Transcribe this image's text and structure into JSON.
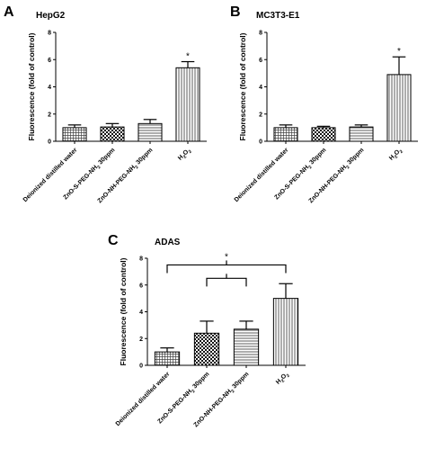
{
  "chart_data": [
    {
      "panel_label": "A",
      "type": "bar",
      "title": "HepG2",
      "ylabel": "Fluorescence (fold of control)",
      "ylim": [
        0,
        8
      ],
      "yticks": [
        0,
        2,
        4,
        6,
        8
      ],
      "categories": [
        "Deionized distilled water",
        "ZnO-S-PEG-NH2 30ppm",
        "ZnO-NH-PEG-NH2 30ppm",
        "H2O2"
      ],
      "values": [
        1.0,
        1.05,
        1.3,
        5.4
      ],
      "errors": [
        0.2,
        0.25,
        0.3,
        0.45
      ],
      "patterns": [
        "grid",
        "checker",
        "hlines",
        "vlines"
      ],
      "annotations": [
        {
          "category_index": 3,
          "text": "*"
        }
      ]
    },
    {
      "panel_label": "B",
      "type": "bar",
      "title": "MC3T3-E1",
      "ylabel": "Fluorescence (fold of control)",
      "ylim": [
        0,
        8
      ],
      "yticks": [
        0,
        2,
        4,
        6,
        8
      ],
      "categories": [
        "Deionized distilled water",
        "ZnO-S-PEG-NH2 30ppm",
        "ZnO-NH-PEG-NH2 30ppm",
        "H2O2"
      ],
      "values": [
        1.0,
        1.0,
        1.05,
        4.9
      ],
      "errors": [
        0.2,
        0.1,
        0.15,
        1.3
      ],
      "patterns": [
        "grid",
        "checker",
        "hlines",
        "vlines"
      ],
      "annotations": [
        {
          "category_index": 3,
          "text": "*"
        }
      ]
    },
    {
      "panel_label": "C",
      "type": "bar",
      "title": "ADAS",
      "ylabel": "Fluorescence (fold of control)",
      "ylim": [
        0,
        8
      ],
      "yticks": [
        0,
        2,
        4,
        6,
        8
      ],
      "categories": [
        "Deionized distilled water",
        "ZnO-S-PEG-NH2 30ppm",
        "ZnO-NH-PEG-NH2 30ppm",
        "H2O2"
      ],
      "values": [
        1.0,
        2.4,
        2.7,
        5.0
      ],
      "errors": [
        0.3,
        0.9,
        0.6,
        1.1
      ],
      "patterns": [
        "grid",
        "checker",
        "hlines",
        "vlines"
      ],
      "annotations": [
        {
          "type": "bracket",
          "from": 0,
          "to": 3,
          "level": 7.5,
          "text": "*"
        },
        {
          "type": "bracket",
          "from": 1,
          "to": 2,
          "level": 6.5,
          "text": ""
        }
      ]
    }
  ]
}
